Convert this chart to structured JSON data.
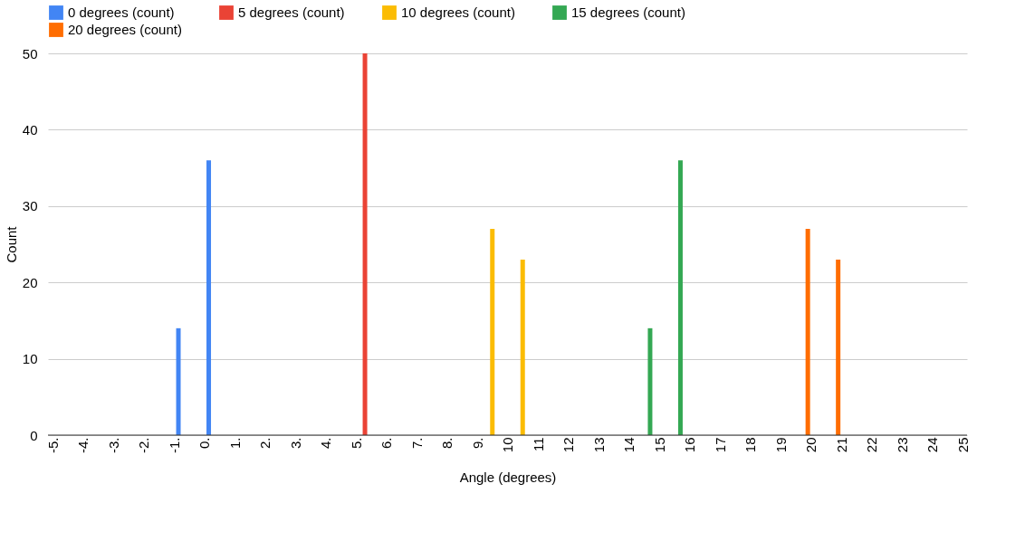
{
  "chart_data": {
    "type": "bar",
    "xlabel": "Angle (degrees)",
    "ylabel": "Count",
    "xlim": [
      -5,
      25
    ],
    "xticks": [
      {
        "value": -5,
        "label": "-5."
      },
      {
        "value": -4,
        "label": "-4."
      },
      {
        "value": -3,
        "label": "-3."
      },
      {
        "value": -2,
        "label": "-2."
      },
      {
        "value": -1,
        "label": "-1."
      },
      {
        "value": 0,
        "label": "0."
      },
      {
        "value": 1,
        "label": "1."
      },
      {
        "value": 2,
        "label": "2."
      },
      {
        "value": 3,
        "label": "3."
      },
      {
        "value": 4,
        "label": "4."
      },
      {
        "value": 5,
        "label": "5."
      },
      {
        "value": 6,
        "label": "6."
      },
      {
        "value": 7,
        "label": "7."
      },
      {
        "value": 8,
        "label": "8."
      },
      {
        "value": 9,
        "label": "9."
      },
      10,
      11,
      12,
      13,
      14,
      15,
      16,
      17,
      18,
      19,
      20,
      21,
      22,
      23,
      24,
      25
    ],
    "ylim": [
      0,
      50
    ],
    "yticks": [
      0,
      10,
      20,
      30,
      40,
      50
    ],
    "grid": "y",
    "legend": "top",
    "series": [
      {
        "name": "0 degrees (count)",
        "color": "#4285f4",
        "x": [
          -0.85,
          0.15
        ],
        "values": [
          14,
          36
        ]
      },
      {
        "name": "5 degrees (count)",
        "color": "#ea4335",
        "x": [
          5.3
        ],
        "values": [
          50
        ]
      },
      {
        "name": "10 degrees (count)",
        "color": "#fbbc04",
        "x": [
          9.5,
          10.5
        ],
        "values": [
          27,
          23
        ]
      },
      {
        "name": "15 degrees (count)",
        "color": "#34a853",
        "x": [
          14.7,
          15.7
        ],
        "values": [
          14,
          36
        ]
      },
      {
        "name": "20 degrees (count)",
        "color": "#ff6d01",
        "x": [
          19.9,
          20.9
        ],
        "values": [
          27,
          23
        ]
      }
    ]
  }
}
